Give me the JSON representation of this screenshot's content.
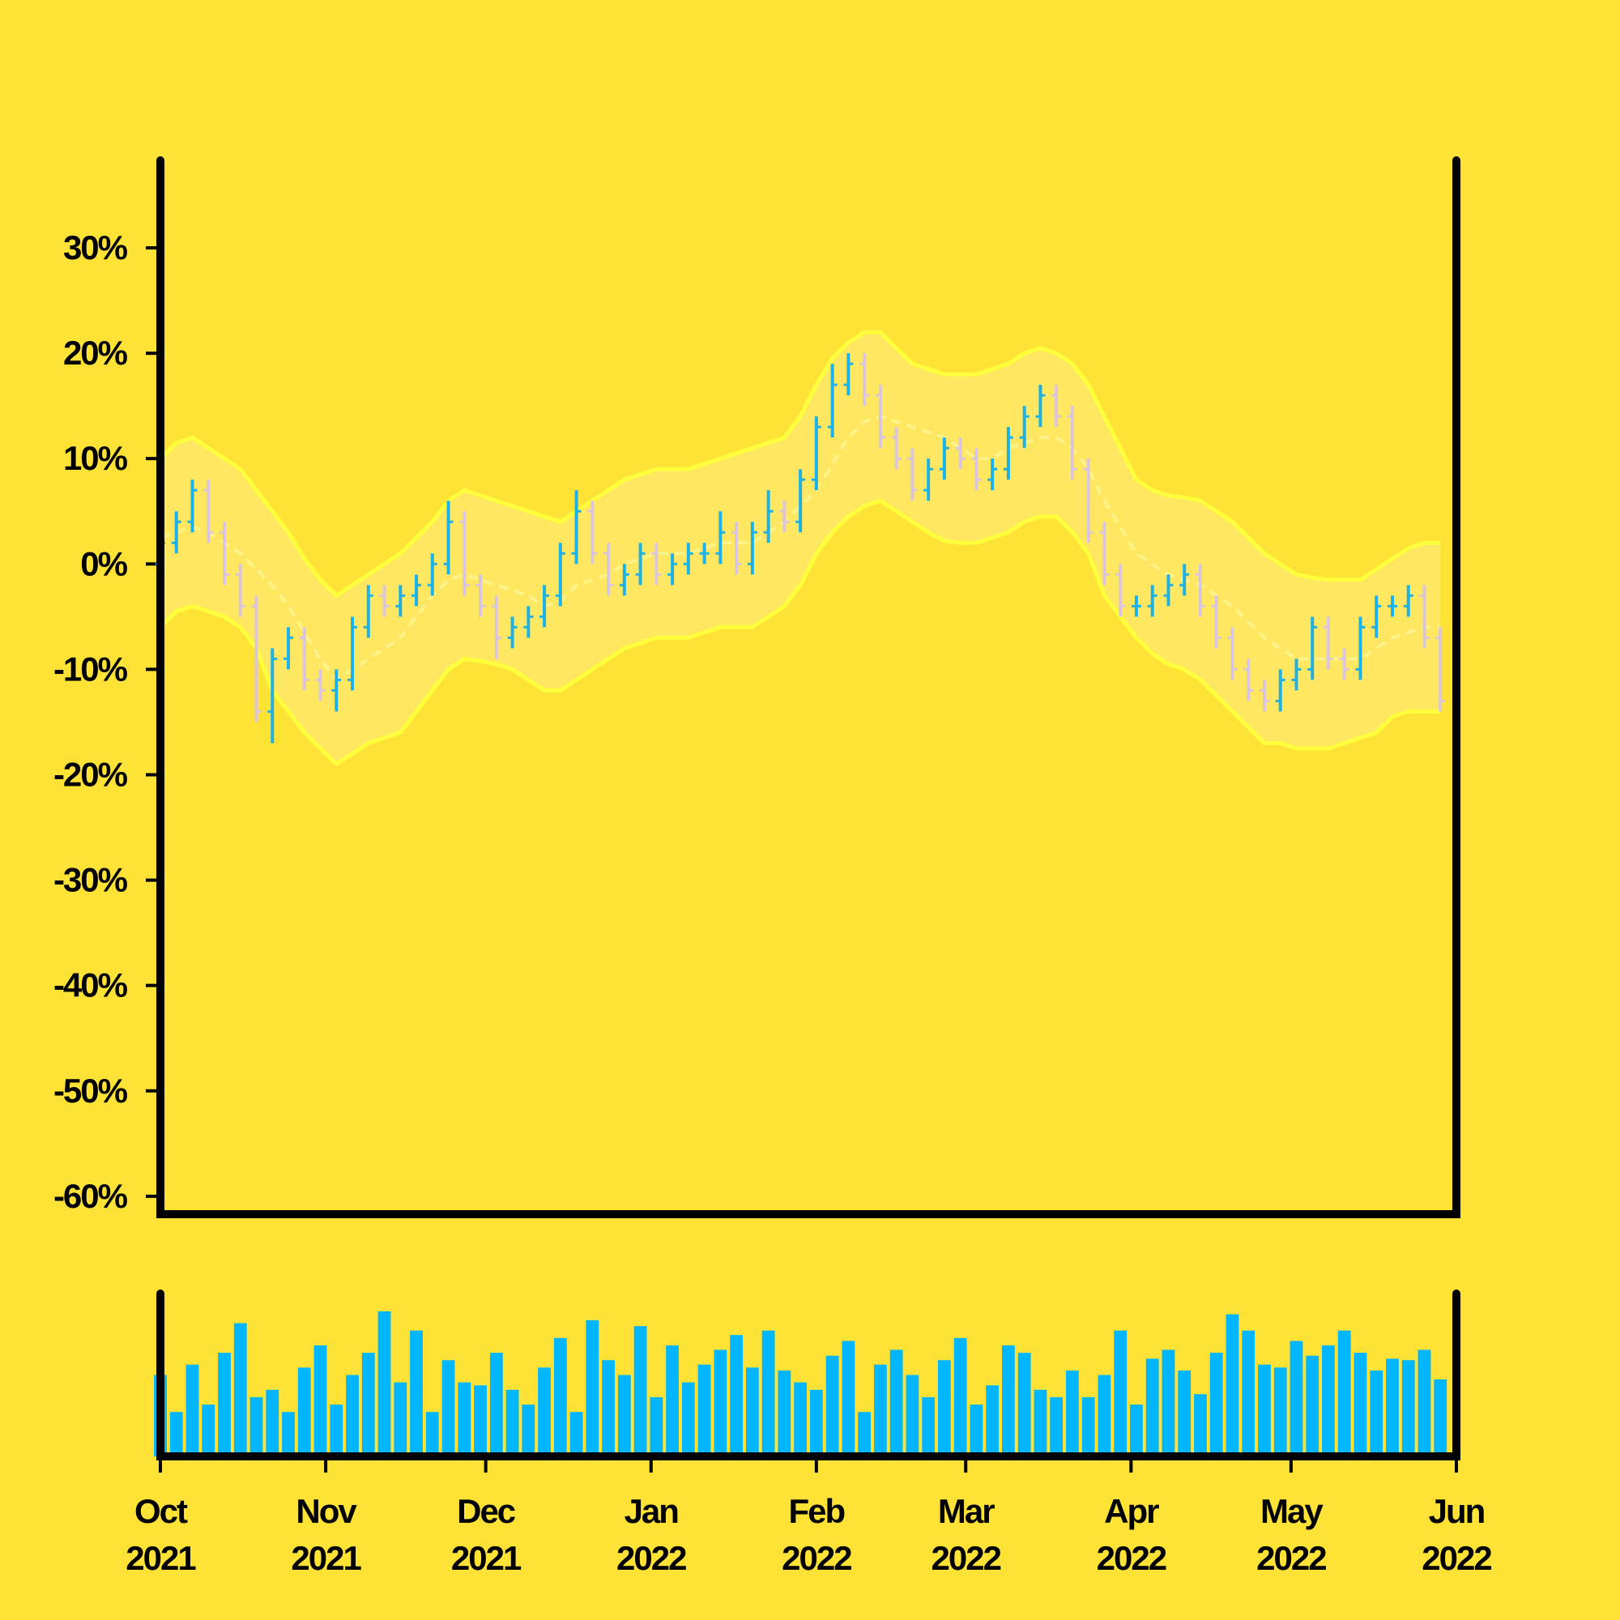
{
  "chart_data": {
    "type": "ohlc",
    "x": [
      0,
      3,
      6,
      9,
      12,
      15,
      18,
      21,
      24,
      27,
      30,
      33,
      36,
      39,
      42,
      45,
      48,
      51,
      54,
      57,
      60,
      63,
      66,
      69,
      72,
      75,
      78,
      81,
      84,
      87,
      90,
      93,
      96,
      99,
      102,
      105,
      108,
      111,
      114,
      117,
      120,
      123,
      126,
      129,
      132,
      135,
      138,
      141,
      144,
      147,
      150,
      153,
      156,
      159,
      162,
      165,
      168,
      171,
      174,
      177,
      180,
      183,
      186,
      189,
      192,
      195,
      198,
      201,
      204,
      207,
      210,
      213,
      216,
      219,
      222,
      225,
      228,
      231,
      234,
      237,
      240
    ],
    "open": [
      0,
      2,
      4,
      7,
      3,
      -1,
      -4,
      -14,
      -9,
      -7,
      -11,
      -12,
      -11,
      -6,
      -3,
      -4,
      -3,
      -2,
      0,
      4,
      -2,
      -4,
      -7,
      -6,
      -5,
      -3,
      1,
      5,
      1,
      -2,
      -1,
      1,
      -1,
      0,
      1,
      1,
      3,
      0,
      3,
      5,
      4,
      8,
      13,
      17,
      19,
      16,
      12,
      10,
      7,
      9,
      11,
      10,
      8,
      9,
      12,
      14,
      16,
      14,
      9,
      3,
      -1,
      -4,
      -4,
      -3,
      -2,
      -1,
      -4,
      -7,
      -10,
      -12,
      -13,
      -11,
      -10,
      -6,
      -9,
      -10,
      -6,
      -4,
      -4,
      -3,
      -7
    ],
    "high": [
      3,
      5,
      8,
      8,
      4,
      0,
      -3,
      -8,
      -6,
      -6,
      -10,
      -10,
      -5,
      -2,
      -2,
      -2,
      -1,
      1,
      6,
      5,
      -1,
      -3,
      -5,
      -4,
      -2,
      2,
      7,
      6,
      2,
      0,
      2,
      2,
      1,
      2,
      2,
      5,
      4,
      4,
      7,
      6,
      9,
      14,
      19,
      20,
      20,
      17,
      13,
      11,
      10,
      12,
      12,
      11,
      10,
      13,
      15,
      17,
      17,
      15,
      10,
      4,
      0,
      -3,
      -2,
      -1,
      0,
      0,
      -3,
      -6,
      -9,
      -11,
      -10,
      -9,
      -5,
      -5,
      -8,
      -5,
      -3,
      -3,
      -2,
      -2,
      -6
    ],
    "low": [
      -1,
      1,
      3,
      2,
      -2,
      -5,
      -15,
      -17,
      -10,
      -12,
      -13,
      -14,
      -12,
      -7,
      -5,
      -5,
      -4,
      -3,
      -1,
      -3,
      -5,
      -9,
      -8,
      -7,
      -6,
      -4,
      0,
      0,
      -3,
      -3,
      -2,
      -2,
      -2,
      -1,
      0,
      0,
      -1,
      -1,
      2,
      3,
      3,
      7,
      12,
      16,
      15,
      11,
      9,
      6,
      6,
      8,
      9,
      7,
      7,
      8,
      11,
      13,
      13,
      8,
      2,
      -2,
      -5,
      -5,
      -5,
      -4,
      -3,
      -5,
      -8,
      -11,
      -13,
      -14,
      -14,
      -12,
      -11,
      -10,
      -11,
      -11,
      -7,
      -5,
      -5,
      -8,
      -14
    ],
    "close": [
      2,
      4,
      7,
      3,
      -1,
      -4,
      -14,
      -9,
      -7,
      -11,
      -12,
      -11,
      -6,
      -3,
      -4,
      -3,
      -2,
      0,
      4,
      -2,
      -4,
      -7,
      -6,
      -5,
      -3,
      1,
      5,
      1,
      -2,
      -1,
      1,
      -1,
      0,
      1,
      1,
      3,
      0,
      3,
      5,
      4,
      8,
      13,
      17,
      19,
      16,
      12,
      10,
      7,
      9,
      11,
      10,
      8,
      9,
      12,
      14,
      16,
      14,
      9,
      3,
      -1,
      -4,
      -4,
      -3,
      -2,
      -1,
      -4,
      -7,
      -10,
      -12,
      -13,
      -11,
      -10,
      -6,
      -9,
      -10,
      -6,
      -4,
      -4,
      -3,
      -7,
      -13
    ],
    "volume": [
      55,
      30,
      62,
      35,
      70,
      90,
      40,
      45,
      30,
      60,
      75,
      35,
      55,
      70,
      98,
      50,
      85,
      30,
      65,
      50,
      48,
      70,
      45,
      35,
      60,
      80,
      30,
      92,
      65,
      55,
      88,
      40,
      75,
      50,
      62,
      72,
      82,
      60,
      85,
      58,
      50,
      45,
      68,
      78,
      30,
      62,
      72,
      55,
      40,
      65,
      80,
      35,
      48,
      75,
      70,
      45,
      40,
      58,
      40,
      55,
      85,
      35,
      66,
      72,
      58,
      42,
      70,
      96,
      85,
      62,
      60,
      78,
      68,
      75,
      85,
      70,
      58,
      66,
      65,
      72,
      52
    ],
    "bands": {
      "upper": [
        10,
        11.5,
        12,
        11,
        10,
        9,
        7,
        5,
        3,
        0.5,
        -1.5,
        -3,
        -2,
        -1,
        0,
        1,
        2.5,
        4,
        6,
        7,
        6.5,
        6,
        5.5,
        5,
        4.5,
        4,
        5,
        6,
        7,
        8,
        8.5,
        9,
        9,
        9,
        9.5,
        10,
        10.5,
        11,
        11.5,
        12,
        14,
        17,
        19.5,
        21,
        22,
        22,
        20.5,
        19,
        18.5,
        18,
        18,
        18,
        18.5,
        19,
        20,
        20.5,
        20,
        19,
        17,
        14,
        11,
        8,
        7,
        6.5,
        6.3,
        6,
        5,
        4,
        2.5,
        1,
        0,
        -1,
        -1.3,
        -1.5,
        -1.5,
        -1.5,
        -0.5,
        0.5,
        1.5,
        2,
        2
      ],
      "middle": [
        2.5,
        3,
        3.5,
        3,
        2,
        1,
        -0.5,
        -2,
        -4,
        -6.5,
        -9,
        -11,
        -10,
        -9,
        -8,
        -7,
        -5,
        -3,
        -1.5,
        -1,
        -1.5,
        -2,
        -2.5,
        -3,
        -4,
        -3.5,
        -2,
        -1.5,
        -1,
        0,
        0.5,
        1,
        1,
        1,
        1.5,
        2,
        2,
        2,
        3,
        4,
        5.5,
        7,
        9.5,
        12,
        13.5,
        14,
        13.5,
        13,
        12.5,
        12,
        11,
        10,
        10,
        11,
        11.5,
        12,
        12,
        11,
        9,
        6,
        3.5,
        1,
        0,
        -1,
        -1.5,
        -2,
        -3,
        -4,
        -5.5,
        -7,
        -8,
        -9,
        -9,
        -9,
        -9,
        -9,
        -8,
        -7,
        -6.5,
        -6,
        -6
      ],
      "lower": [
        -6,
        -4.5,
        -4,
        -4.5,
        -5,
        -6,
        -8,
        -12,
        -14,
        -16,
        -17.5,
        -19,
        -18,
        -17,
        -16.5,
        -16,
        -14,
        -12,
        -10,
        -9,
        -9.2,
        -9.5,
        -10,
        -11,
        -12,
        -12,
        -11,
        -10,
        -9,
        -8,
        -7.5,
        -7,
        -7,
        -7,
        -6.5,
        -6,
        -6,
        -6,
        -5,
        -4,
        -2,
        1,
        3,
        4.5,
        5.5,
        6,
        5,
        4,
        3,
        2.2,
        2,
        2,
        2.5,
        3,
        4,
        4.5,
        4.5,
        3,
        1,
        -3,
        -5,
        -7,
        -8.5,
        -9.5,
        -10,
        -11,
        -12.5,
        -14,
        -15.5,
        -17,
        -17,
        -17.5,
        -17.5,
        -17.5,
        -17,
        -16.5,
        -16,
        -14.5,
        -14,
        -14,
        -14
      ]
    },
    "xlim": [
      0,
      243
    ],
    "xticks": [
      {
        "value": 0,
        "label": "Oct\n2021"
      },
      {
        "value": 31,
        "label": "Nov\n2021"
      },
      {
        "value": 61,
        "label": "Dec\n2021"
      },
      {
        "value": 92,
        "label": "Jan\n2022"
      },
      {
        "value": 123,
        "label": "Feb\n2022"
      },
      {
        "value": 151,
        "label": "Mar\n2022"
      },
      {
        "value": 182,
        "label": "Apr\n2022"
      },
      {
        "value": 212,
        "label": "May\n2022"
      },
      {
        "value": 243,
        "label": "Jun\n2022"
      }
    ],
    "ylim": [
      -61.7,
      38.3
    ],
    "yticks": [
      {
        "value": -60,
        "label": "-60%"
      },
      {
        "value": -50,
        "label": "-50%"
      },
      {
        "value": -40,
        "label": "-40%"
      },
      {
        "value": -30,
        "label": "-30%"
      },
      {
        "value": -20,
        "label": "-20%"
      },
      {
        "value": -10,
        "label": "-10%"
      },
      {
        "value": 0,
        "label": "0%"
      },
      {
        "value": 10,
        "label": "10%"
      },
      {
        "value": 20,
        "label": "20%"
      },
      {
        "value": 30,
        "label": "30%"
      }
    ],
    "volume_ylim": [
      0,
      110
    ],
    "colors": {
      "up": "#1cb2e8",
      "down": "#d9c6dc",
      "volume": "#00b6ff",
      "band_fill": "#ffe866",
      "band_line": "#ffff3c",
      "middle": "#fff38a"
    }
  }
}
